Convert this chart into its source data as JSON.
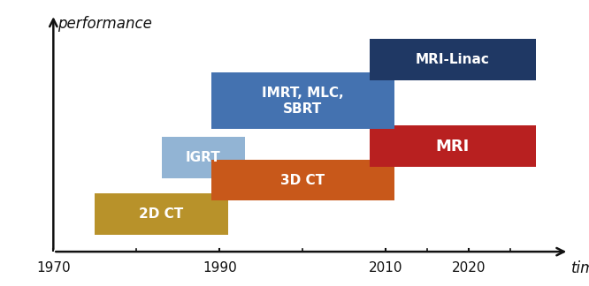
{
  "bars": [
    {
      "label": "2D CT",
      "x_start": 1975,
      "x_end": 1991,
      "y_center": 1.0,
      "height": 0.55,
      "color": "#B8922A",
      "text_color": "white",
      "fontsize": 11,
      "fontweight": "bold"
    },
    {
      "label": "IGRT",
      "x_start": 1983,
      "x_end": 1993,
      "y_center": 1.75,
      "height": 0.55,
      "color": "#92B4D4",
      "text_color": "white",
      "fontsize": 11,
      "fontweight": "bold"
    },
    {
      "label": "3D CT",
      "x_start": 1989,
      "x_end": 2011,
      "y_center": 1.45,
      "height": 0.55,
      "color": "#C8581A",
      "text_color": "white",
      "fontsize": 11,
      "fontweight": "bold"
    },
    {
      "label": "MRI",
      "x_start": 2008,
      "x_end": 2028,
      "y_center": 1.9,
      "height": 0.55,
      "color": "#B82020",
      "text_color": "white",
      "fontsize": 13,
      "fontweight": "bold"
    },
    {
      "label": "IMRT, MLC,\nSBRT",
      "x_start": 1989,
      "x_end": 2011,
      "y_center": 2.5,
      "height": 0.75,
      "color": "#4472B0",
      "text_color": "white",
      "fontsize": 11,
      "fontweight": "bold"
    },
    {
      "label": "MRI-Linac",
      "x_start": 2008,
      "x_end": 2028,
      "y_center": 3.05,
      "height": 0.55,
      "color": "#1F3864",
      "text_color": "white",
      "fontsize": 11,
      "fontweight": "bold"
    }
  ],
  "x_lim": [
    1965,
    2033
  ],
  "y_lim": [
    0.5,
    3.65
  ],
  "x_ticks": [
    1970,
    1990,
    2010,
    2020
  ],
  "x_tick_labels": [
    "1970",
    "1990",
    "2010",
    "2020"
  ],
  "extra_ticks": [
    1980,
    2000,
    2015,
    2025
  ],
  "xlabel": "time",
  "ylabel": "performance",
  "background_color": "#ffffff",
  "arrow_color": "#111111",
  "tick_fontsize": 11,
  "label_fontsize": 12
}
